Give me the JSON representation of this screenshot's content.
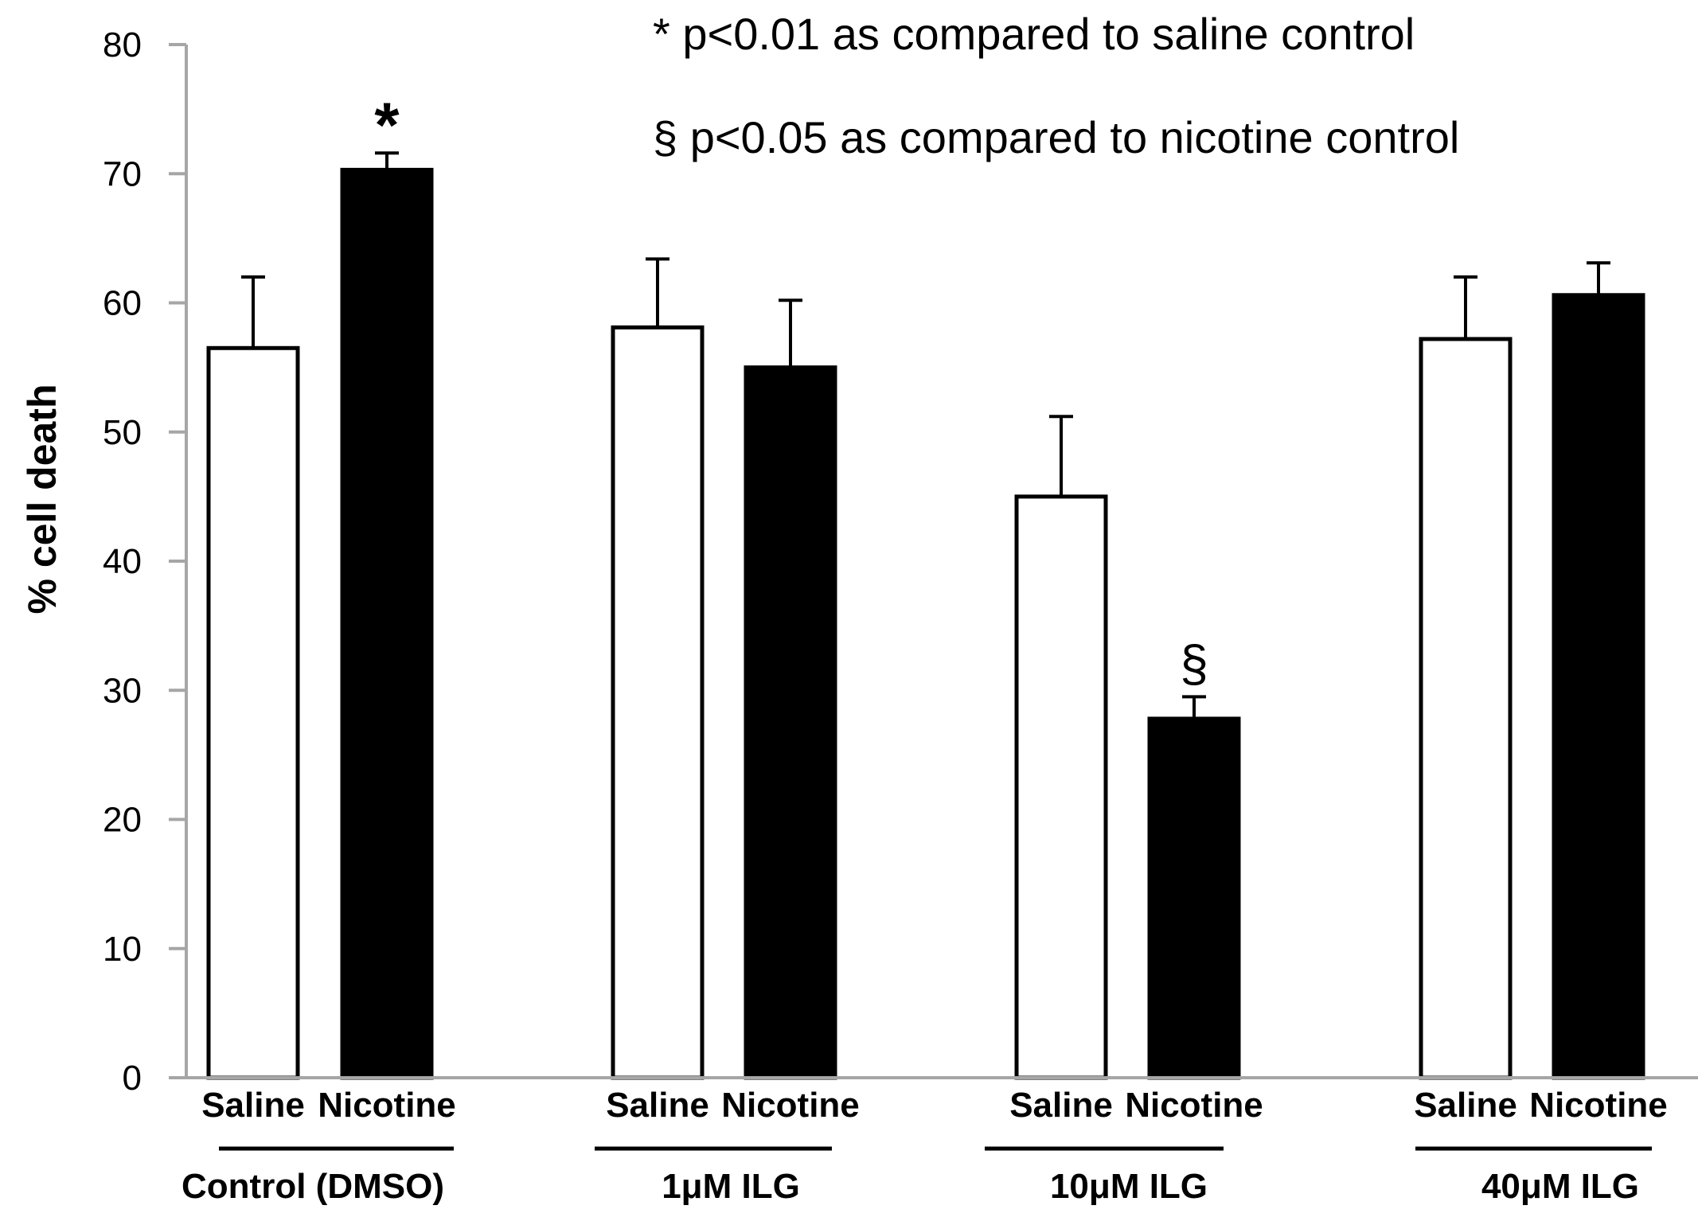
{
  "chart_data": {
    "type": "bar",
    "ylabel": "% cell death",
    "xlabel": "",
    "ylim": [
      0,
      80
    ],
    "yticks": [
      0,
      10,
      20,
      30,
      40,
      50,
      60,
      70,
      80
    ],
    "grid": false,
    "groups": [
      {
        "label": "Control (DMSO)",
        "bars": [
          {
            "label": "Saline",
            "value": 56.5,
            "error": 5.5,
            "fill": "#ffffff",
            "sig": ""
          },
          {
            "label": "Nicotine",
            "value": 70.3,
            "error": 1.3,
            "fill": "#000000",
            "sig": "*"
          }
        ]
      },
      {
        "label": "1μM ILG",
        "bars": [
          {
            "label": "Saline",
            "value": 58.1,
            "error": 5.3,
            "fill": "#ffffff",
            "sig": ""
          },
          {
            "label": "Nicotine",
            "value": 55.0,
            "error": 5.2,
            "fill": "#000000",
            "sig": ""
          }
        ]
      },
      {
        "label": "10μM ILG",
        "bars": [
          {
            "label": "Saline",
            "value": 45.0,
            "error": 6.2,
            "fill": "#ffffff",
            "sig": ""
          },
          {
            "label": "Nicotine",
            "value": 27.8,
            "error": 1.7,
            "fill": "#000000",
            "sig": "§"
          }
        ]
      },
      {
        "label": "40μM ILG",
        "bars": [
          {
            "label": "Saline",
            "value": 57.2,
            "error": 4.8,
            "fill": "#ffffff",
            "sig": ""
          },
          {
            "label": "Nicotine",
            "value": 60.6,
            "error": 2.5,
            "fill": "#000000",
            "sig": ""
          }
        ]
      }
    ],
    "annotations": [
      "* p<0.01 as compared to saline control",
      "§ p<0.05 as compared to nicotine control"
    ]
  }
}
